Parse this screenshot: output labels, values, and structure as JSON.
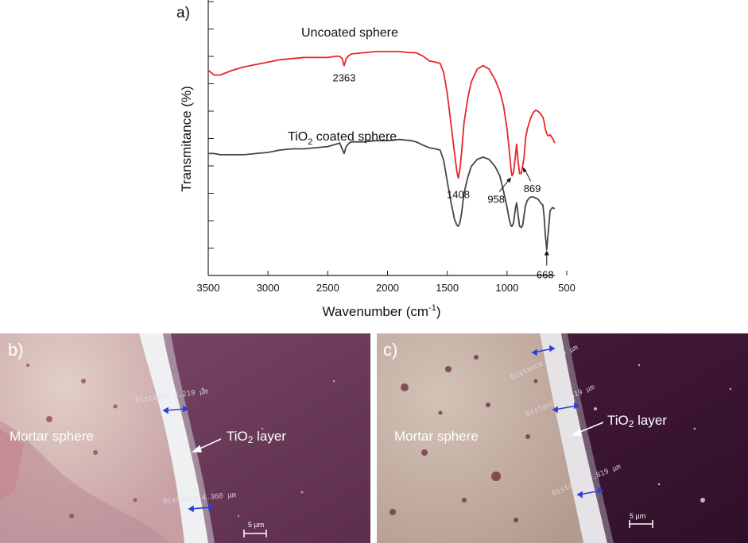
{
  "chart_data": {
    "type": "line",
    "panel_label": "a)",
    "xlabel": "Wavenumber (cm",
    "xlabel_sup": "-1",
    "xlabel_tail": ")",
    "ylabel": "Transmitance (%)",
    "xlim": [
      3500,
      600
    ],
    "x_ticks": [
      "3500",
      "3000",
      "2500",
      "2000",
      "1500",
      "1000",
      "500"
    ],
    "x_tick_values": [
      3500,
      3000,
      2500,
      2000,
      1500,
      1000,
      500
    ],
    "x_axis_reversed": true,
    "y_tick_labels_shown": false,
    "series": [
      {
        "name": "Uncoated sphere",
        "color": "#e8262a",
        "x": [
          3500,
          3450,
          3400,
          3300,
          3200,
          3100,
          3000,
          2900,
          2800,
          2700,
          2600,
          2500,
          2430,
          2400,
          2380,
          2363,
          2345,
          2320,
          2300,
          2200,
          2100,
          2000,
          1900,
          1800,
          1760,
          1700,
          1650,
          1600,
          1560,
          1530,
          1500,
          1470,
          1440,
          1420,
          1408,
          1395,
          1380,
          1360,
          1330,
          1300,
          1250,
          1200,
          1150,
          1100,
          1060,
          1030,
          1000,
          980,
          965,
          958,
          945,
          930,
          920,
          910,
          895,
          880,
          869,
          858,
          845,
          830,
          815,
          800,
          780,
          760,
          740,
          720,
          700,
          690,
          680,
          668,
          655,
          640,
          620,
          600
        ],
        "y": [
          100.0,
          96.0,
          96.0,
          100.0,
          103.0,
          105.0,
          107.0,
          109.0,
          110.0,
          111.0,
          111.0,
          111.0,
          112.0,
          112.0,
          110.0,
          104.0,
          110.0,
          113.0,
          114.0,
          115.0,
          116.0,
          116.0,
          116.0,
          115.0,
          115.0,
          112.0,
          108.0,
          107.0,
          106.0,
          98.0,
          80.0,
          55.0,
          30.0,
          14.0,
          8.0,
          15.0,
          30.0,
          55.0,
          75.0,
          90.0,
          101.0,
          104.0,
          101.0,
          92.0,
          82.0,
          70.0,
          50.0,
          30.0,
          14.0,
          10.0,
          13.0,
          27.0,
          37.0,
          25.0,
          12.0,
          12.0,
          19.0,
          25.0,
          42.0,
          50.0,
          55.0,
          60.0,
          64.0,
          66.0,
          65.0,
          63.0,
          60.0,
          56.0,
          50.0,
          46.0,
          44.0,
          45.0,
          42.0,
          38.0
        ]
      },
      {
        "name": "TiO₂ coated sphere",
        "color": "#454545",
        "x": [
          3500,
          3450,
          3400,
          3300,
          3200,
          3100,
          3000,
          2900,
          2800,
          2700,
          2600,
          2500,
          2430,
          2400,
          2380,
          2363,
          2345,
          2320,
          2300,
          2200,
          2100,
          2000,
          1900,
          1800,
          1760,
          1700,
          1650,
          1600,
          1560,
          1530,
          1500,
          1470,
          1440,
          1420,
          1408,
          1395,
          1380,
          1360,
          1330,
          1300,
          1250,
          1200,
          1150,
          1100,
          1060,
          1030,
          1000,
          980,
          965,
          958,
          945,
          930,
          920,
          910,
          895,
          880,
          869,
          858,
          845,
          830,
          815,
          800,
          780,
          760,
          740,
          720,
          700,
          690,
          680,
          668,
          655,
          640,
          620,
          600
        ],
        "y": [
          29.0,
          29.0,
          28.0,
          28.0,
          28.0,
          29.0,
          30.0,
          32.0,
          33.0,
          33.0,
          34.0,
          35.0,
          37.0,
          38.0,
          33.0,
          29.0,
          35.0,
          38.0,
          39.0,
          39.0,
          40.0,
          40.0,
          41.0,
          40.0,
          39.0,
          36.0,
          34.0,
          33.0,
          32.0,
          23.0,
          5.0,
          -12.0,
          -27.0,
          -32.0,
          -33.0,
          -30.0,
          -22.0,
          -5.0,
          8.0,
          18.0,
          24.0,
          26.0,
          24.0,
          18.0,
          10.0,
          -3.0,
          -17.0,
          -28.0,
          -33.0,
          -33.0,
          -30.0,
          -18.0,
          -13.0,
          -21.0,
          -33.0,
          -34.0,
          -32.0,
          -24.0,
          -15.0,
          -11.0,
          -9.0,
          -8.0,
          -8.0,
          -9.0,
          -10.0,
          -13.0,
          -15.0,
          -25.0,
          -40.0,
          -53.0,
          -38.0,
          -20.0,
          -17.0,
          -18.0
        ]
      }
    ],
    "annotations": [
      {
        "text": "2363",
        "series": 0,
        "x": 2363
      },
      {
        "text": "1408",
        "series": 0,
        "x": 1408
      },
      {
        "text": "958",
        "series": 0,
        "x": 958
      },
      {
        "text": "869",
        "series": 0,
        "x": 869
      },
      {
        "text": "668",
        "series": 1,
        "x": 668
      }
    ],
    "series_labels": [
      {
        "text": "Uncoated sphere"
      },
      {
        "text_main": "TiO",
        "text_sub": "2",
        "text_tail": " coated sphere"
      }
    ]
  },
  "panel_b": {
    "letter": "b)",
    "mortar_label": "Mortar sphere",
    "layer_label_main": "TiO",
    "layer_label_sub": "2",
    "layer_label_tail": " layer",
    "distances": [
      "Distance 4.219 µm",
      "Distance 4.360 µm"
    ],
    "scale_bar": "5 µm"
  },
  "panel_c": {
    "letter": "c)",
    "mortar_label": "Mortar sphere",
    "layer_label_main": "TiO",
    "layer_label_sub": "2",
    "layer_label_tail": " layer",
    "distances": [
      "Distance 3.670 µm",
      "Distance 4.519 µm",
      "Distance 3.819 µm"
    ],
    "scale_bar": "5 µm"
  },
  "colors": {
    "uncoated": "#e8262a",
    "coated": "#454545",
    "measure_arrow": "#2a3fd8",
    "mortar_b": "#d9c0b6",
    "substrate_b": "#6c3a58",
    "mortar_c": "#c4ad9f",
    "substrate_c": "#3b1733"
  }
}
